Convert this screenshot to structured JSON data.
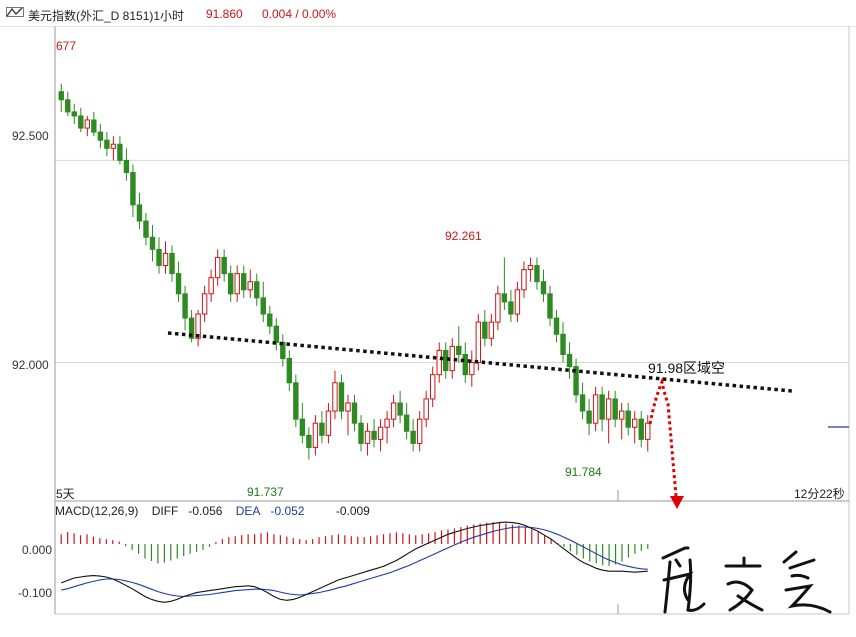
{
  "header": {
    "title": "美元指数(外汇_D 8151)1小时",
    "price": "91.860",
    "change": "0.004 / 0.00%",
    "icon": "chart-toggle-icon"
  },
  "colors": {
    "up": "#d01515",
    "down": "#2e8b22",
    "trendline": "#111111",
    "arrow": "#e00000",
    "macd_line": "#111111",
    "signal_line": "#1e3aa8",
    "grid": "#d7d7d7"
  },
  "bottom_left": "5天",
  "bottom_right": "12分22秒",
  "annotation": "91.98区域空",
  "signature": "signature",
  "chart_data": [
    {
      "type": "candlestick",
      "ylim": [
        91.66,
        92.83
      ],
      "y_ticks": [
        "92.500",
        "92.000"
      ],
      "labels": {
        "high_left": "677",
        "mid_high": "92.261",
        "low1": "91.737",
        "low2": "91.784"
      },
      "candles": [
        [
          92.67,
          92.69,
          92.62,
          92.65
        ],
        [
          92.65,
          92.67,
          92.61,
          92.62
        ],
        [
          92.62,
          92.64,
          92.59,
          92.61
        ],
        [
          92.61,
          92.63,
          92.57,
          92.58
        ],
        [
          92.58,
          92.61,
          92.56,
          92.6
        ],
        [
          92.6,
          92.62,
          92.56,
          92.57
        ],
        [
          92.57,
          92.59,
          92.53,
          92.55
        ],
        [
          92.55,
          92.57,
          92.51,
          92.53
        ],
        [
          92.53,
          92.56,
          92.5,
          92.54
        ],
        [
          92.54,
          92.56,
          92.49,
          92.5
        ],
        [
          92.5,
          92.53,
          92.45,
          92.47
        ],
        [
          92.47,
          92.49,
          92.36,
          92.39
        ],
        [
          92.39,
          92.42,
          92.33,
          92.35
        ],
        [
          92.35,
          92.37,
          92.29,
          92.31
        ],
        [
          92.31,
          92.34,
          92.25,
          92.28
        ],
        [
          92.28,
          92.31,
          92.22,
          92.24
        ],
        [
          92.24,
          92.3,
          92.22,
          92.27
        ],
        [
          92.27,
          92.29,
          92.2,
          92.22
        ],
        [
          92.22,
          92.25,
          92.15,
          92.17
        ],
        [
          92.17,
          92.19,
          92.08,
          92.11
        ],
        [
          92.11,
          92.13,
          92.05,
          92.06
        ],
        [
          92.06,
          92.13,
          92.04,
          92.12
        ],
        [
          92.12,
          92.19,
          92.1,
          92.17
        ],
        [
          92.17,
          92.23,
          92.15,
          92.21
        ],
        [
          92.21,
          92.28,
          92.19,
          92.26
        ],
        [
          92.26,
          92.28,
          92.2,
          92.22
        ],
        [
          92.22,
          92.24,
          92.15,
          92.17
        ],
        [
          92.17,
          92.24,
          92.15,
          92.22
        ],
        [
          92.22,
          92.24,
          92.16,
          92.18
        ],
        [
          92.18,
          92.23,
          92.16,
          92.2
        ],
        [
          92.2,
          92.22,
          92.14,
          92.16
        ],
        [
          92.16,
          92.2,
          92.1,
          92.12
        ],
        [
          92.12,
          92.14,
          92.07,
          92.09
        ],
        [
          92.09,
          92.11,
          92.03,
          92.05
        ],
        [
          92.05,
          92.07,
          91.99,
          92.01
        ],
        [
          92.01,
          92.03,
          91.93,
          91.95
        ],
        [
          91.95,
          91.97,
          91.84,
          91.86
        ],
        [
          91.86,
          91.9,
          91.8,
          91.82
        ],
        [
          91.82,
          91.84,
          91.76,
          91.79
        ],
        [
          91.79,
          91.87,
          91.77,
          91.85
        ],
        [
          91.85,
          91.88,
          91.8,
          91.82
        ],
        [
          91.82,
          91.9,
          91.8,
          91.88
        ],
        [
          91.88,
          91.98,
          91.86,
          91.95
        ],
        [
          91.95,
          91.97,
          91.86,
          91.88
        ],
        [
          91.88,
          91.92,
          91.82,
          91.9
        ],
        [
          91.9,
          91.92,
          91.83,
          91.85
        ],
        [
          91.85,
          91.87,
          91.78,
          91.8
        ],
        [
          91.8,
          91.85,
          91.77,
          91.83
        ],
        [
          91.83,
          91.86,
          91.79,
          91.81
        ],
        [
          91.81,
          91.86,
          91.78,
          91.84
        ],
        [
          91.84,
          91.88,
          91.8,
          91.86
        ],
        [
          91.86,
          91.92,
          91.84,
          91.9
        ],
        [
          91.9,
          91.93,
          91.85,
          91.87
        ],
        [
          91.87,
          91.9,
          91.81,
          91.83
        ],
        [
          91.83,
          91.86,
          91.78,
          91.8
        ],
        [
          91.8,
          91.88,
          91.78,
          91.86
        ],
        [
          91.86,
          91.93,
          91.84,
          91.91
        ],
        [
          91.91,
          91.99,
          91.89,
          91.97
        ],
        [
          91.97,
          92.05,
          91.95,
          92.03
        ],
        [
          92.03,
          92.05,
          91.96,
          91.98
        ],
        [
          91.98,
          92.06,
          91.96,
          92.04
        ],
        [
          92.04,
          92.09,
          92.0,
          92.02
        ],
        [
          92.02,
          92.05,
          91.95,
          91.97
        ],
        [
          91.97,
          92.03,
          91.94,
          92.0
        ],
        [
          92.0,
          92.12,
          91.98,
          92.1
        ],
        [
          92.1,
          92.13,
          92.04,
          92.06
        ],
        [
          92.06,
          92.12,
          92.04,
          92.1
        ],
        [
          92.1,
          92.19,
          92.08,
          92.17
        ],
        [
          92.17,
          92.26,
          92.13,
          92.15
        ],
        [
          92.15,
          92.18,
          92.1,
          92.12
        ],
        [
          92.12,
          92.2,
          92.1,
          92.18
        ],
        [
          92.18,
          92.25,
          92.16,
          92.23
        ],
        [
          92.23,
          92.26,
          92.2,
          92.24
        ],
        [
          92.24,
          92.26,
          92.18,
          92.2
        ],
        [
          92.2,
          92.23,
          92.15,
          92.17
        ],
        [
          92.17,
          92.19,
          92.09,
          92.11
        ],
        [
          92.11,
          92.13,
          92.05,
          92.07
        ],
        [
          92.07,
          92.1,
          92.0,
          92.02
        ],
        [
          92.02,
          92.05,
          91.96,
          91.99
        ],
        [
          91.99,
          92.01,
          91.9,
          91.92
        ],
        [
          91.92,
          91.95,
          91.86,
          91.88
        ],
        [
          91.88,
          91.91,
          91.82,
          91.85
        ],
        [
          91.85,
          91.94,
          91.83,
          91.92
        ],
        [
          91.92,
          91.94,
          91.83,
          91.86
        ],
        [
          91.86,
          91.93,
          91.8,
          91.91
        ],
        [
          91.91,
          91.93,
          91.84,
          91.86
        ],
        [
          91.86,
          91.9,
          91.81,
          91.88
        ],
        [
          91.88,
          91.9,
          91.82,
          91.84
        ],
        [
          91.84,
          91.88,
          91.8,
          91.86
        ],
        [
          91.86,
          91.88,
          91.79,
          91.81
        ],
        [
          91.81,
          91.87,
          91.78,
          91.85
        ]
      ]
    },
    {
      "type": "macd",
      "title": "MACD(12,26,9)",
      "diff_label": "DIFF",
      "diff": "-0.056",
      "dea_label": "DEA",
      "dea": "-0.052",
      "macd": "-0.009",
      "y_ticks": [
        "0.000",
        "-0.100"
      ],
      "ylim": [
        -0.14,
        0.07
      ],
      "hist": [
        0.02,
        0.025,
        0.022,
        0.018,
        0.02,
        0.015,
        0.012,
        0.01,
        0.008,
        0.005,
        -0.005,
        -0.012,
        -0.02,
        -0.03,
        -0.035,
        -0.04,
        -0.038,
        -0.034,
        -0.03,
        -0.025,
        -0.02,
        -0.016,
        -0.012,
        -0.006,
        0.004,
        0.01,
        0.014,
        0.016,
        0.018,
        0.02,
        0.02,
        0.022,
        0.024,
        0.02,
        0.018,
        0.015,
        0.012,
        0.01,
        0.008,
        0.01,
        0.014,
        0.016,
        0.018,
        0.02,
        0.018,
        0.016,
        0.015,
        0.014,
        0.016,
        0.018,
        0.02,
        0.022,
        0.024,
        0.022,
        0.02,
        0.018,
        0.02,
        0.022,
        0.025,
        0.028,
        0.03,
        0.032,
        0.035,
        0.038,
        0.04,
        0.042,
        0.044,
        0.045,
        0.044,
        0.042,
        0.04,
        0.038,
        0.035,
        0.03,
        0.025,
        0.018,
        0.01,
        0.002,
        -0.006,
        -0.015,
        -0.022,
        -0.03,
        -0.036,
        -0.04,
        -0.044,
        -0.045,
        -0.042,
        -0.036,
        -0.028,
        -0.02,
        -0.014,
        -0.01
      ],
      "diff_line": [
        -0.08,
        -0.075,
        -0.07,
        -0.068,
        -0.066,
        -0.065,
        -0.066,
        -0.068,
        -0.072,
        -0.078,
        -0.085,
        -0.092,
        -0.1,
        -0.108,
        -0.114,
        -0.118,
        -0.12,
        -0.118,
        -0.114,
        -0.108,
        -0.104,
        -0.1,
        -0.098,
        -0.096,
        -0.094,
        -0.092,
        -0.09,
        -0.088,
        -0.087,
        -0.086,
        -0.088,
        -0.093,
        -0.1,
        -0.108,
        -0.114,
        -0.116,
        -0.114,
        -0.11,
        -0.104,
        -0.098,
        -0.092,
        -0.086,
        -0.08,
        -0.074,
        -0.07,
        -0.066,
        -0.062,
        -0.058,
        -0.054,
        -0.05,
        -0.046,
        -0.04,
        -0.034,
        -0.026,
        -0.018,
        -0.01,
        -0.004,
        0.002,
        0.008,
        0.014,
        0.02,
        0.024,
        0.028,
        0.032,
        0.035,
        0.038,
        0.04,
        0.042,
        0.044,
        0.045,
        0.044,
        0.042,
        0.038,
        0.032,
        0.026,
        0.018,
        0.01,
        0.0,
        -0.01,
        -0.02,
        -0.03,
        -0.038,
        -0.044,
        -0.05,
        -0.054,
        -0.056,
        -0.056,
        -0.056,
        -0.057,
        -0.058,
        -0.057,
        -0.056
      ],
      "dea_line": [
        -0.095,
        -0.092,
        -0.088,
        -0.084,
        -0.08,
        -0.077,
        -0.074,
        -0.072,
        -0.072,
        -0.073,
        -0.076,
        -0.079,
        -0.083,
        -0.088,
        -0.093,
        -0.098,
        -0.102,
        -0.105,
        -0.107,
        -0.108,
        -0.107,
        -0.106,
        -0.105,
        -0.104,
        -0.102,
        -0.1,
        -0.098,
        -0.096,
        -0.095,
        -0.094,
        -0.093,
        -0.093,
        -0.094,
        -0.096,
        -0.099,
        -0.102,
        -0.104,
        -0.105,
        -0.104,
        -0.102,
        -0.1,
        -0.097,
        -0.094,
        -0.09,
        -0.087,
        -0.083,
        -0.079,
        -0.075,
        -0.071,
        -0.067,
        -0.063,
        -0.059,
        -0.054,
        -0.049,
        -0.044,
        -0.038,
        -0.032,
        -0.026,
        -0.02,
        -0.014,
        -0.008,
        -0.002,
        0.004,
        0.009,
        0.014,
        0.018,
        0.022,
        0.026,
        0.029,
        0.032,
        0.034,
        0.035,
        0.035,
        0.034,
        0.032,
        0.029,
        0.025,
        0.02,
        0.014,
        0.008,
        0.001,
        -0.006,
        -0.013,
        -0.02,
        -0.027,
        -0.033,
        -0.038,
        -0.043,
        -0.046,
        -0.049,
        -0.051,
        -0.052
      ]
    }
  ]
}
